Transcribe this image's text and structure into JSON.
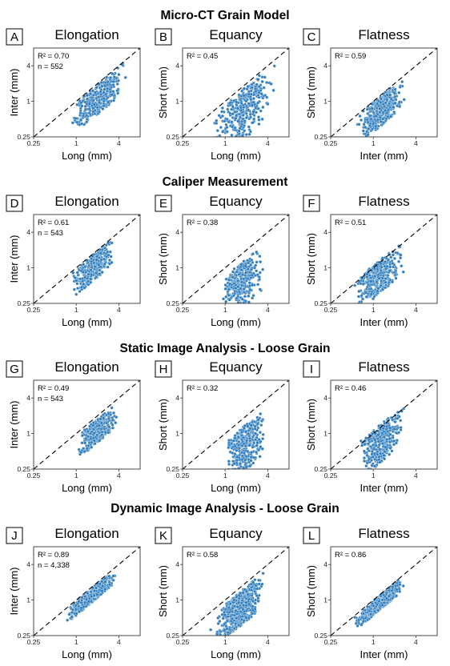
{
  "colors": {
    "points": "#2f7dbd",
    "diagonal": "#000000"
  },
  "chart_data": {
    "type": "scatter",
    "log_scale": true,
    "grid": false,
    "axis_range_mm": [
      0.25,
      8
    ],
    "tick_values": [
      0.25,
      1,
      4
    ],
    "tick_labels": [
      "0.25",
      "1",
      "4"
    ],
    "rows": [
      {
        "title": "Micro-CT Grain Model",
        "panels": [
          {
            "letter": "A",
            "title": "Elongation",
            "xlabel": "Long (mm)",
            "ylabel": "Inter (mm)",
            "r2": "R² = 0.70",
            "n": "n = 552",
            "cloud": {
              "x": [
                0.75,
                5.5
              ],
              "ratio_min": 0.3,
              "ratio_max": 0.97,
              "points": 360
            }
          },
          {
            "letter": "B",
            "title": "Equancy",
            "xlabel": "Long (mm)",
            "ylabel": "Short (mm)",
            "r2": "R² = 0.45",
            "n": "",
            "cloud": {
              "x": [
                0.6,
                5.5
              ],
              "ratio_min": 0.12,
              "ratio_max": 0.9,
              "points": 360
            }
          },
          {
            "letter": "C",
            "title": "Flatness",
            "xlabel": "Inter (mm)",
            "ylabel": "Short (mm)",
            "r2": "R² = 0.59",
            "n": "",
            "cloud": {
              "x": [
                0.5,
                3.2
              ],
              "ratio_min": 0.3,
              "ratio_max": 0.97,
              "points": 360
            }
          }
        ]
      },
      {
        "title": "Caliper Measurement",
        "panels": [
          {
            "letter": "D",
            "title": "Elongation",
            "xlabel": "Long (mm)",
            "ylabel": "Inter (mm)",
            "r2": "R² = 0.61",
            "n": "n = 543",
            "cloud": {
              "x": [
                0.8,
                3.8
              ],
              "ratio_min": 0.35,
              "ratio_max": 0.97,
              "points": 340
            }
          },
          {
            "letter": "E",
            "title": "Equancy",
            "xlabel": "Long (mm)",
            "ylabel": "Short (mm)",
            "r2": "R² = 0.38",
            "n": "",
            "cloud": {
              "x": [
                0.75,
                3.8
              ],
              "ratio_min": 0.12,
              "ratio_max": 0.72,
              "points": 340
            }
          },
          {
            "letter": "F",
            "title": "Flatness",
            "xlabel": "Inter (mm)",
            "ylabel": "Short (mm)",
            "r2": "R² = 0.51",
            "n": "",
            "cloud": {
              "x": [
                0.45,
                3.2
              ],
              "ratio_min": 0.3,
              "ratio_max": 1.1,
              "points": 340
            }
          }
        ]
      },
      {
        "title": "Static Image Analysis - Loose Grain",
        "panels": [
          {
            "letter": "G",
            "title": "Elongation",
            "xlabel": "Long (mm)",
            "ylabel": "Inter (mm)",
            "r2": "R² = 0.49",
            "n": "n = 543",
            "cloud": {
              "x": [
                0.95,
                4.0
              ],
              "ratio_min": 0.35,
              "ratio_max": 0.9,
              "points": 340
            }
          },
          {
            "letter": "H",
            "title": "Equancy",
            "xlabel": "Long (mm)",
            "ylabel": "Short (mm)",
            "r2": "R² = 0.32",
            "n": "",
            "cloud": {
              "x": [
                0.9,
                4.0
              ],
              "ratio_min": 0.12,
              "ratio_max": 0.72,
              "points": 340
            }
          },
          {
            "letter": "I",
            "title": "Flatness",
            "xlabel": "Inter (mm)",
            "ylabel": "Short (mm)",
            "r2": "R² = 0.46",
            "n": "",
            "cloud": {
              "x": [
                0.55,
                3.0
              ],
              "ratio_min": 0.25,
              "ratio_max": 1.15,
              "points": 340
            }
          }
        ]
      },
      {
        "title": "Dynamic Image Analysis - Loose Grain",
        "panels": [
          {
            "letter": "J",
            "title": "Elongation",
            "xlabel": "Long (mm)",
            "ylabel": "Inter (mm)",
            "r2": "R² = 0.89",
            "n": "n = 4,338",
            "cloud": {
              "x": [
                0.7,
                3.9
              ],
              "ratio_min": 0.55,
              "ratio_max": 0.95,
              "points": 600
            }
          },
          {
            "letter": "K",
            "title": "Equancy",
            "xlabel": "Long (mm)",
            "ylabel": "Short (mm)",
            "r2": "R² = 0.58",
            "n": "",
            "cloud": {
              "x": [
                0.6,
                3.9
              ],
              "ratio_min": 0.22,
              "ratio_max": 0.85,
              "points": 600
            }
          },
          {
            "letter": "L",
            "title": "Flatness",
            "xlabel": "Inter (mm)",
            "ylabel": "Short (mm)",
            "r2": "R² = 0.86",
            "n": "",
            "cloud": {
              "x": [
                0.5,
                3.0
              ],
              "ratio_min": 0.55,
              "ratio_max": 0.97,
              "points": 600
            }
          }
        ]
      }
    ]
  }
}
